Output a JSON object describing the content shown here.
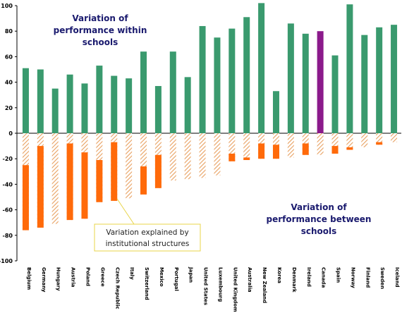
{
  "chart_data": {
    "type": "bar",
    "title": "",
    "xlabel": "",
    "ylabel": "",
    "ylim": [
      -100,
      100
    ],
    "y_ticks": [
      100,
      80,
      60,
      40,
      20,
      0,
      -20,
      -40,
      -60,
      -80,
      -100
    ],
    "grid": false,
    "categories": [
      "Belgium",
      "Germany",
      "Hungary",
      "Austria",
      "Poland",
      "Greece",
      "Czech Republic",
      "Italy",
      "Switzerland",
      "Mexico",
      "Portugal",
      "Japan",
      "United States",
      "Luxembourg",
      "United Kingdom",
      "Australia",
      "New Zealand",
      "Korea",
      "Denmark",
      "Ireland",
      "Canada",
      "Spain",
      "Norway",
      "Finland",
      "Sweden",
      "Iceland"
    ],
    "series": [
      {
        "values": [
          51,
          50,
          35,
          46,
          39,
          53,
          45,
          43,
          64,
          37,
          64,
          44,
          84,
          75,
          82,
          91,
          102,
          33,
          86,
          78,
          80,
          61,
          101,
          77,
          83,
          85
        ]
      },
      {
        "values": [
          -76,
          -74,
          -71,
          -68,
          -67,
          -54,
          -53,
          -51,
          -48,
          -43,
          -37,
          -36,
          -35,
          -33,
          -22,
          -21,
          -20,
          -20,
          -19,
          -17,
          -17,
          -16,
          -13,
          -11,
          -9,
          -7
        ]
      },
      {
        "values": [
          -25,
          -10,
          0,
          -8,
          -15,
          -21,
          -7,
          0,
          -26,
          -17,
          0,
          0,
          0,
          0,
          -16,
          -19,
          -8,
          -9,
          0,
          -8,
          0,
          -10,
          -11,
          0,
          -7,
          0
        ]
      }
    ],
    "highlight_category": "Canada",
    "colors": {
      "within": "#3a9a6e",
      "highlight": "#8b1a8b",
      "between_hatch": "#e8a060",
      "explained": "#ff6a0a"
    },
    "annotations": {
      "within": [
        "Variation of",
        "performance within",
        "schools"
      ],
      "between": [
        "Variation of",
        "performance between",
        "schools"
      ],
      "callout": [
        "Variation explained by",
        "institutional structures"
      ]
    }
  }
}
